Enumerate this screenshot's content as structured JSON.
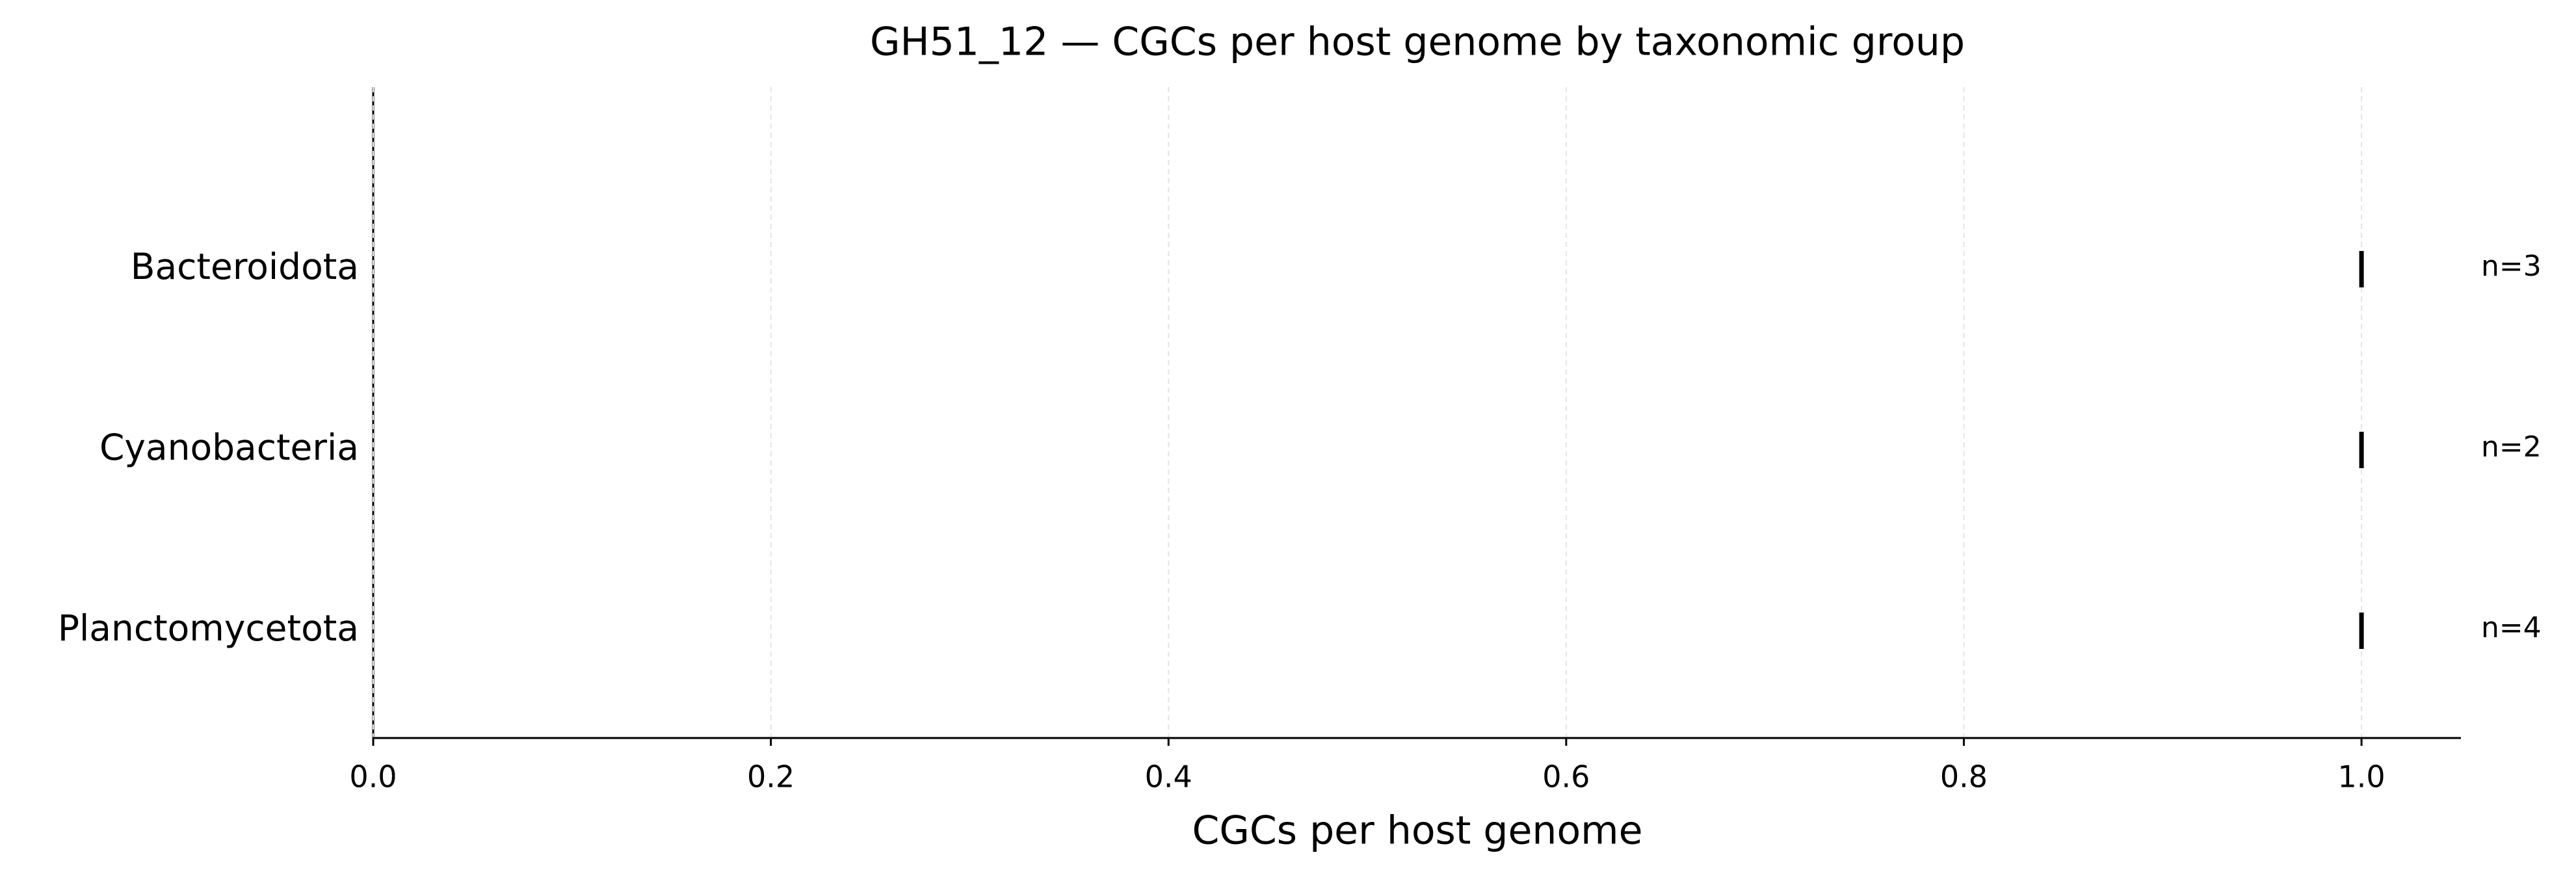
{
  "chart_data": {
    "type": "tick",
    "title": "GH51_12 — CGCs per host genome by taxonomic group",
    "x_label": "CGCs per host genome",
    "categories": [
      "Bacteroidota",
      "Cyanobacteria",
      "Planctomycetota"
    ],
    "values": [
      1.0,
      1.0,
      1.0
    ],
    "annotations": [
      "n=3",
      "n=2",
      "n=4"
    ],
    "color": "#000000",
    "xlim": [
      0,
      1.05
    ],
    "xticks": [
      {
        "value": 0,
        "label": "0.0"
      },
      {
        "value": 0.2,
        "label": "0.2"
      },
      {
        "value": 0.4,
        "label": "0.4"
      },
      {
        "value": 0.6,
        "label": "0.6"
      },
      {
        "value": 0.8,
        "label": "0.8"
      },
      {
        "value": 1.0,
        "label": "1.0"
      }
    ],
    "grid": true
  }
}
